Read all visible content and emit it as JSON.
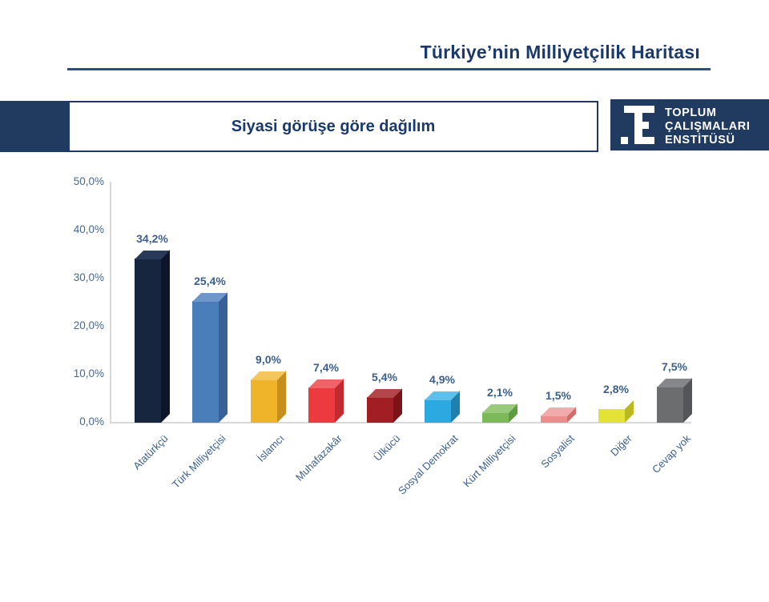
{
  "header": {
    "title": "Türkiye’nin Milliyetçilik Haritası",
    "underline_color": "#2d4e7e",
    "text_color": "#1b3a6b"
  },
  "banner": {
    "subtitle": "Siyasi görüşe göre dağılım",
    "navy": "#203a60",
    "logo": {
      "line1": "TOPLUM",
      "line2": "ÇALIŞMALARI",
      "line3": "ENSTİTÜSÜ",
      "icon": "institute-monogram-icon"
    }
  },
  "chart_data": {
    "type": "bar",
    "style": "3d",
    "title": "Siyasi görüşe göre dağılım",
    "xlabel": "",
    "ylabel": "",
    "ylim": [
      0,
      50
    ],
    "grid": false,
    "legend": false,
    "y_ticks": [
      "50,0%",
      "40,0%",
      "30,0%",
      "20,0%",
      "10,0%",
      "0,0%"
    ],
    "categories": [
      "Atatürkçü",
      "Türk Milliyetçisi",
      "İslamcı",
      "Muhafazakâr",
      "Ülkücü",
      "Sosyal Demokrat",
      "Kürt Milliyetçisi",
      "Sosyalist",
      "Diğer",
      "Cevap yok"
    ],
    "values": [
      34.2,
      25.4,
      9.0,
      7.4,
      5.4,
      4.9,
      2.1,
      1.5,
      2.8,
      7.5
    ],
    "value_labels": [
      "34,2%",
      "25,4%",
      "9,0%",
      "7,4%",
      "5,4%",
      "4,9%",
      "2,1%",
      "1,5%",
      "2,8%",
      "7,5%"
    ],
    "bar_colors": [
      {
        "front": "#16263f",
        "side": "#0c1628",
        "top": "#283a58"
      },
      {
        "front": "#4a7ebb",
        "side": "#386297",
        "top": "#6e96c9"
      },
      {
        "front": "#f0b42b",
        "side": "#c68e1c",
        "top": "#f4c65c"
      },
      {
        "front": "#ec3a3f",
        "side": "#c22a30",
        "top": "#f06468"
      },
      {
        "front": "#a01e24",
        "side": "#7c1318",
        "top": "#b2464b"
      },
      {
        "front": "#2ba9e0",
        "side": "#1f80af",
        "top": "#5fc0e9"
      },
      {
        "front": "#7cba59",
        "side": "#5f9c41",
        "top": "#99ca7b"
      },
      {
        "front": "#ec8d8d",
        "side": "#d06c6c",
        "top": "#f2abab"
      },
      {
        "front": "#e4e236",
        "side": "#b9b81f",
        "top": "#eceা6b"
      },
      {
        "front": "#6c6d6f",
        "side": "#545559",
        "top": "#85878a"
      }
    ],
    "axis_color": "#d8d8d8",
    "tick_label_color": "#47688f",
    "data_label_color": "#3a5f8d"
  }
}
